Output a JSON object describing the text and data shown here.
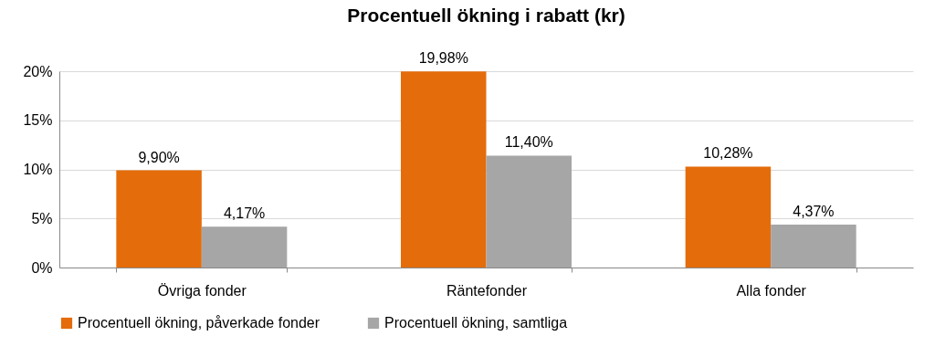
{
  "chart_data": {
    "type": "bar",
    "title": "Procentuell ökning i rabatt (kr)",
    "categories": [
      "Övriga fonder",
      "Räntefonder",
      "Alla fonder"
    ],
    "series": [
      {
        "name": "Procentuell ökning, påverkade fonder",
        "color": "#e46c0a",
        "values": [
          9.9,
          19.98,
          10.28
        ],
        "value_labels": [
          "9,90%",
          "19,98%",
          "10,28%"
        ]
      },
      {
        "name": "Procentuell ökning, samtliga",
        "color": "#a6a6a6",
        "values": [
          4.17,
          11.4,
          4.37
        ],
        "value_labels": [
          "4,17%",
          "11,40%",
          "4,37%"
        ]
      }
    ],
    "ylim": [
      0,
      20
    ],
    "yticks": [
      {
        "value": 0,
        "label": "0%"
      },
      {
        "value": 5,
        "label": "5%"
      },
      {
        "value": 10,
        "label": "10%"
      },
      {
        "value": 15,
        "label": "15%"
      },
      {
        "value": 20,
        "label": "20%"
      }
    ],
    "grid": "y",
    "legend": "bottom"
  }
}
